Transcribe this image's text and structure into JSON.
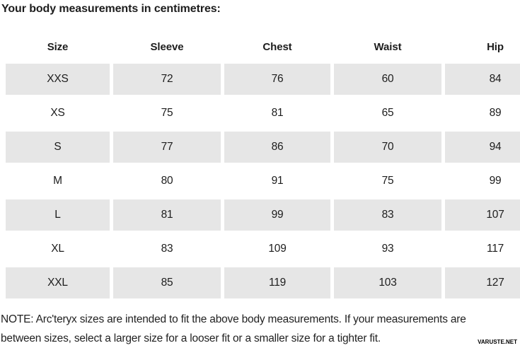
{
  "page": {
    "title": "Your body measurements in centimetres:"
  },
  "table": {
    "columns": [
      "Size",
      "Sleeve",
      "Chest",
      "Waist",
      "Hip"
    ],
    "rows": [
      [
        "XXS",
        "72",
        "76",
        "60",
        "84"
      ],
      [
        "XS",
        "75",
        "81",
        "65",
        "89"
      ],
      [
        "S",
        "77",
        "86",
        "70",
        "94"
      ],
      [
        "M",
        "80",
        "91",
        "75",
        "99"
      ],
      [
        "L",
        "81",
        "99",
        "83",
        "107"
      ],
      [
        "XL",
        "83",
        "109",
        "93",
        "117"
      ],
      [
        "XXL",
        "85",
        "119",
        "103",
        "127"
      ]
    ]
  },
  "note": {
    "lines": [
      "NOTE: Arc'teryx sizes are intended to fit the above body measurements. If your measurements are",
      "between sizes, select a larger size for a looser fit or a smaller size for a tighter fit."
    ]
  },
  "watermark": "VARUSTE.NET",
  "colors": {
    "stripe": "#e6e6e6",
    "text": "#1d1d1d",
    "background": "#ffffff"
  }
}
